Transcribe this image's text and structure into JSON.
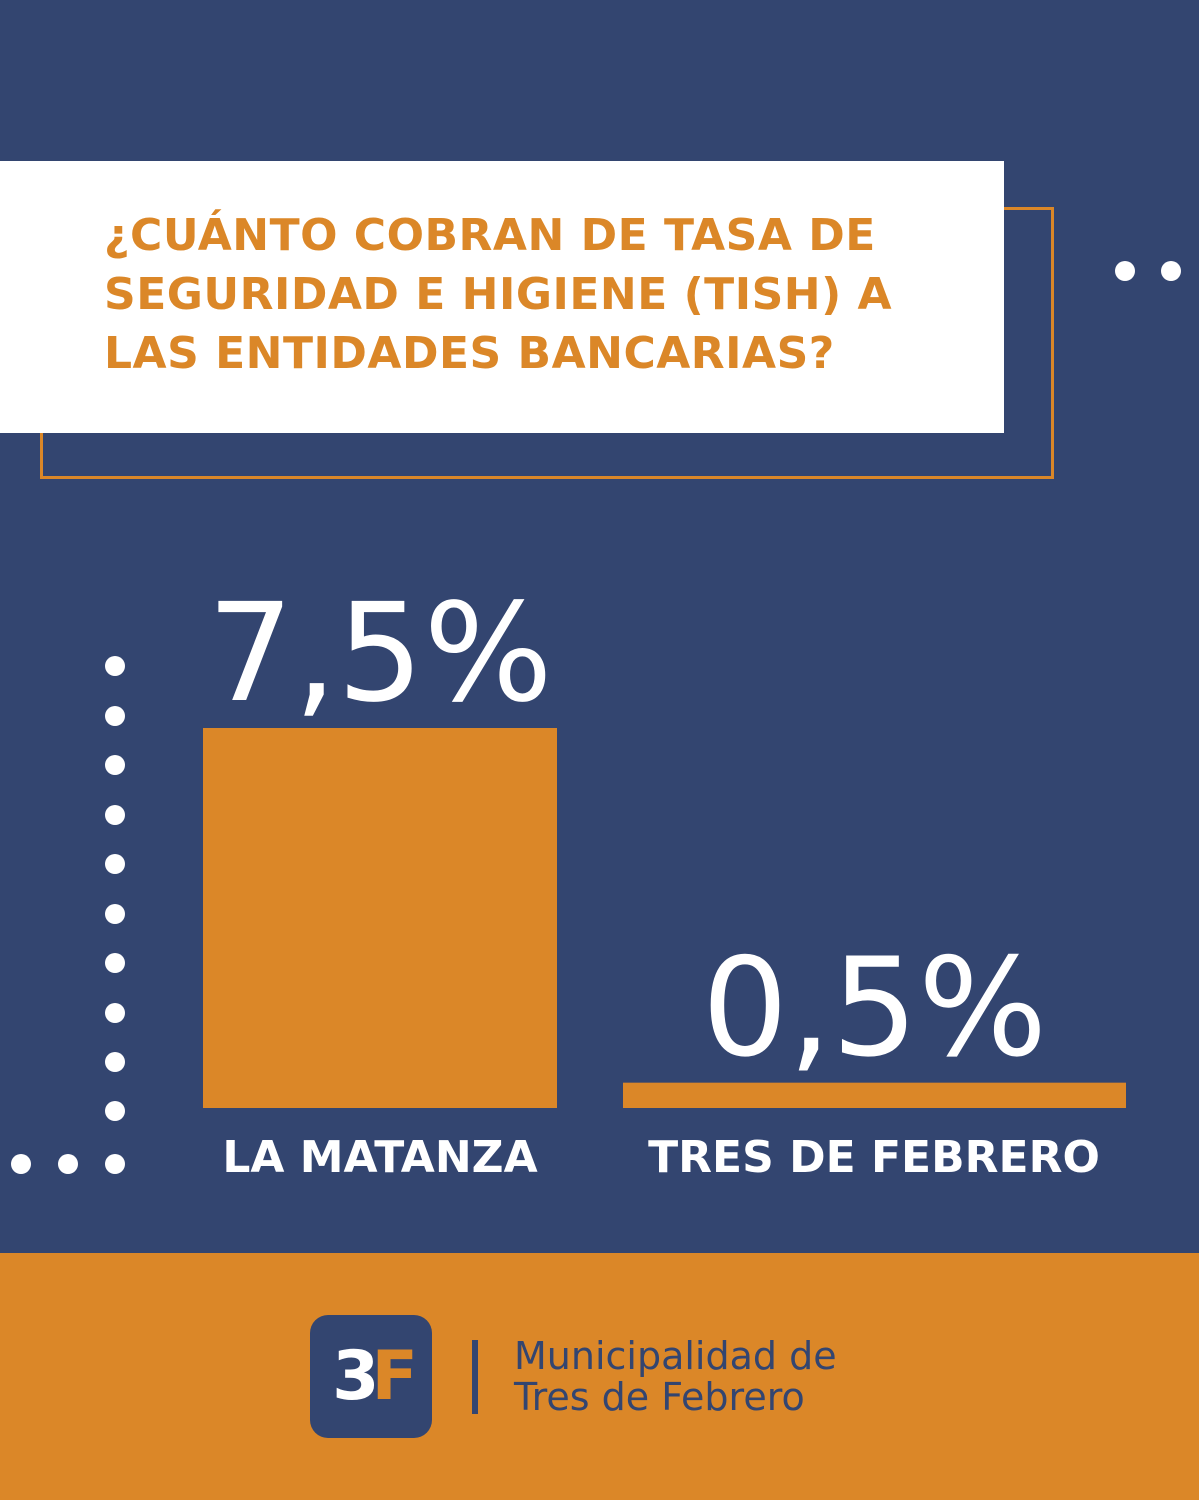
{
  "title_lines": [
    "¿CUÁNTO COBRAN DE TASA DE",
    "SEGURIDAD E HIGIENE (TISH) A",
    "LAS ENTIDADES BANCARIAS?"
  ],
  "chart_data": {
    "type": "bar",
    "title": "¿CUÁNTO COBRAN DE TASA DE SEGURIDAD E HIGIENE (TISH) A LAS ENTIDADES BANCARIAS?",
    "categories": [
      "LA MATANZA",
      "TRES DE FEBRERO"
    ],
    "values": [
      7.5,
      0.5
    ],
    "value_labels": [
      "7,5%",
      "0,5%"
    ],
    "unit": "%",
    "ylim": [
      0,
      7.5
    ],
    "grid": false,
    "legend": "none"
  },
  "footer": {
    "logo_text": "3",
    "logo_accent": "F",
    "org_line1": "Municipalidad de",
    "org_line2": "Tres de Febrero"
  },
  "colors": {
    "navy": "#334570",
    "orange": "#DB8728",
    "white": "#ffffff"
  }
}
